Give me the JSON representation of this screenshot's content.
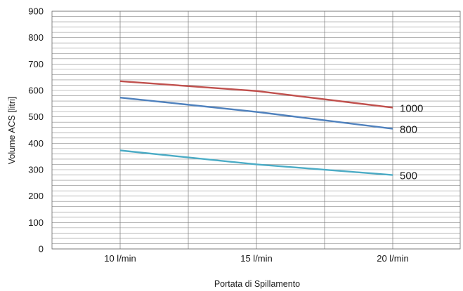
{
  "chart_data": {
    "type": "line",
    "title": "",
    "xlabel": "Portata di Spillamento",
    "ylabel": "Volume ACS [litri]",
    "categories": [
      "10 l/min",
      "15 l/min",
      "20 l/min"
    ],
    "ylim": [
      0,
      900
    ],
    "y_ticks": [
      0,
      100,
      200,
      300,
      400,
      500,
      600,
      700,
      800,
      900
    ],
    "y_minor_step": 20,
    "grid": true,
    "legend": "none",
    "series": [
      {
        "name": "1000",
        "values": [
          635,
          598,
          535
        ],
        "color": "#c0504d"
      },
      {
        "name": "800",
        "values": [
          573,
          519,
          455
        ],
        "color": "#4f81bd"
      },
      {
        "name": "500",
        "values": [
          373,
          320,
          280
        ],
        "color": "#4bacc6"
      }
    ]
  }
}
